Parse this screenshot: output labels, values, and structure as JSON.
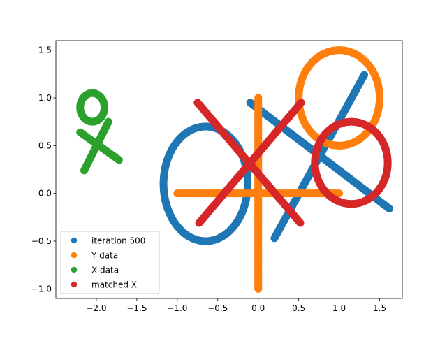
{
  "chart_data": {
    "type": "scatter",
    "title": "",
    "xlabel": "",
    "ylabel": "",
    "xlim": [
      -2.5,
      1.78
    ],
    "ylim": [
      -1.1,
      1.6
    ],
    "grid": false,
    "legend_position": "lower-left",
    "x_ticks": [
      -2.0,
      -1.5,
      -1.0,
      -0.5,
      0.0,
      0.5,
      1.0,
      1.5
    ],
    "y_ticks": [
      -1.0,
      -0.5,
      0.0,
      0.5,
      1.0,
      1.5
    ],
    "x_tick_labels": [
      "−2.0",
      "−1.5",
      "−1.0",
      "−0.5",
      "0.0",
      "0.5",
      "1.0",
      "1.5"
    ],
    "y_tick_labels": [
      "−1.0",
      "−0.5",
      "0.0",
      "0.5",
      "1.0",
      "1.5"
    ],
    "series": [
      {
        "name": "iteration 500",
        "color": "#1f77b4",
        "segments": [
          {
            "from": [
              -0.1,
              0.95
            ],
            "to": [
              1.62,
              -0.16
            ]
          },
          {
            "from": [
              0.2,
              -0.47
            ],
            "to": [
              1.31,
              1.24
            ]
          }
        ],
        "ellipses": [
          {
            "center": [
              -0.65,
              0.1
            ],
            "rx": 0.52,
            "ry": 0.6
          }
        ]
      },
      {
        "name": "Y data",
        "color": "#ff7f0e",
        "segments": [
          {
            "from": [
              -1.0,
              0.0
            ],
            "to": [
              1.0,
              0.0
            ]
          },
          {
            "from": [
              0.0,
              -1.0
            ],
            "to": [
              0.0,
              1.0
            ]
          }
        ],
        "ellipses": [
          {
            "center": [
              1.0,
              1.0
            ],
            "rx": 0.5,
            "ry": 0.5
          }
        ]
      },
      {
        "name": "X data",
        "color": "#2ca02c",
        "segments": [
          {
            "from": [
              -2.2,
              0.64
            ],
            "to": [
              -1.72,
              0.35
            ]
          },
          {
            "from": [
              -2.15,
              0.24
            ],
            "to": [
              -1.85,
              0.75
            ]
          }
        ],
        "ellipses": [
          {
            "center": [
              -2.05,
              0.9
            ],
            "rx": 0.15,
            "ry": 0.15
          }
        ]
      },
      {
        "name": "matched X",
        "color": "#d62728",
        "segments": [
          {
            "from": [
              -0.75,
              0.95
            ],
            "to": [
              0.52,
              -0.31
            ]
          },
          {
            "from": [
              -0.73,
              -0.31
            ],
            "to": [
              0.53,
              0.95
            ]
          }
        ],
        "ellipses": [
          {
            "center": [
              1.15,
              0.32
            ],
            "rx": 0.45,
            "ry": 0.43
          }
        ]
      }
    ]
  }
}
